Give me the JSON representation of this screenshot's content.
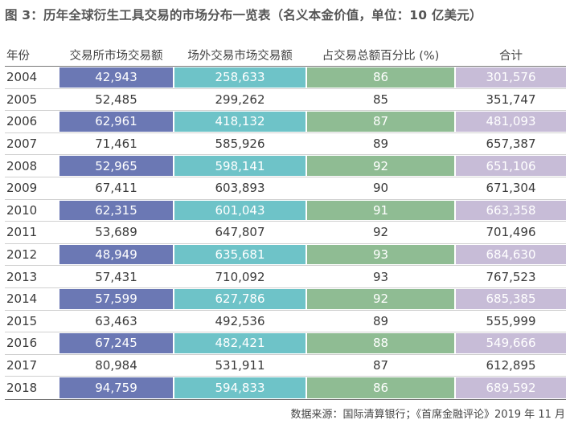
{
  "title": "图 3：历年全球衍生工具交易的市场分布一览表（名义本金价值，单位：10 亿美元）",
  "headers": [
    "年份",
    "交易所市场交易额",
    "场外交易市场交易额",
    "占交易总额百分比 (%)",
    "合计"
  ],
  "colors": {
    "exchange": "#6b78b4",
    "otc": "#6ec3c8",
    "percent": "#8fbc93",
    "total": "#c7bcd7"
  },
  "rows": [
    {
      "year": "2004",
      "exchange": "42,943",
      "otc": "258,633",
      "pct": "86",
      "total": "301,576",
      "highlight": true
    },
    {
      "year": "2005",
      "exchange": "52,485",
      "otc": "299,262",
      "pct": "85",
      "total": "351,747",
      "highlight": false
    },
    {
      "year": "2006",
      "exchange": "62,961",
      "otc": "418,132",
      "pct": "87",
      "total": "481,093",
      "highlight": true
    },
    {
      "year": "2007",
      "exchange": "71,461",
      "otc": "585,926",
      "pct": "89",
      "total": "657,387",
      "highlight": false
    },
    {
      "year": "2008",
      "exchange": "52,965",
      "otc": "598,141",
      "pct": "92",
      "total": "651,106",
      "highlight": true
    },
    {
      "year": "2009",
      "exchange": "67,411",
      "otc": "603,893",
      "pct": "90",
      "total": "671,304",
      "highlight": false
    },
    {
      "year": "2010",
      "exchange": "62,315",
      "otc": "601,043",
      "pct": "91",
      "total": "663,358",
      "highlight": true
    },
    {
      "year": "2011",
      "exchange": "53,689",
      "otc": "647,807",
      "pct": "92",
      "total": "701,496",
      "highlight": false
    },
    {
      "year": "2012",
      "exchange": "48,949",
      "otc": "635,681",
      "pct": "93",
      "total": "684,630",
      "highlight": true
    },
    {
      "year": "2013",
      "exchange": "57,431",
      "otc": "710,092",
      "pct": "93",
      "total": "767,523",
      "highlight": false
    },
    {
      "year": "2014",
      "exchange": "57,599",
      "otc": "627,786",
      "pct": "92",
      "total": "685,385",
      "highlight": true
    },
    {
      "year": "2015",
      "exchange": "63,463",
      "otc": "492,536",
      "pct": "89",
      "total": "555,999",
      "highlight": false
    },
    {
      "year": "2016",
      "exchange": "67,245",
      "otc": "482,421",
      "pct": "88",
      "total": "549,666",
      "highlight": true
    },
    {
      "year": "2017",
      "exchange": "80,984",
      "otc": "531,911",
      "pct": "87",
      "total": "612,895",
      "highlight": false
    },
    {
      "year": "2018",
      "exchange": "94,759",
      "otc": "594,833",
      "pct": "86",
      "total": "689,592",
      "highlight": true
    }
  ],
  "source": "数据来源：国际清算银行；《首席金融评论》2019 年 11 月"
}
